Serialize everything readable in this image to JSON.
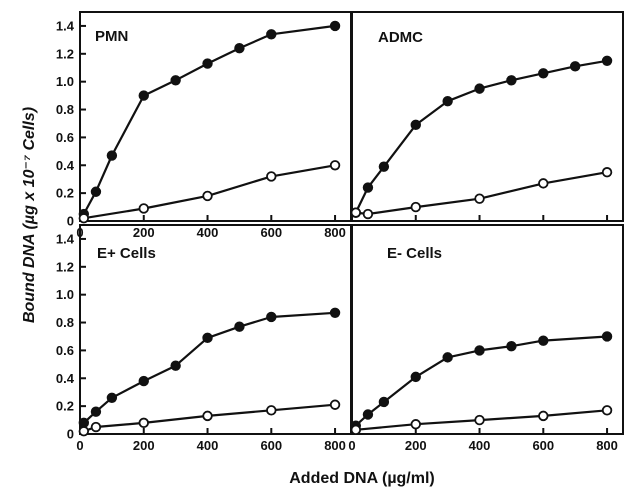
{
  "figure": {
    "ylabel": "Bound DNA (µg x 10⁻⁷ Cells)",
    "xlabel": "Added DNA (µg/ml)"
  },
  "chart_data": [
    {
      "type": "line",
      "title": "PMN",
      "xlim": [
        0,
        850
      ],
      "ylim": [
        0,
        1.5
      ],
      "xticks": [
        0,
        200,
        400,
        600,
        800
      ],
      "xtick_labels": [
        "0",
        "200",
        "400",
        "600",
        "800"
      ],
      "yticks": [
        0,
        0.2,
        0.4,
        0.6,
        0.8,
        1.0,
        1.2,
        1.4
      ],
      "ytick_labels": [
        "0",
        "0.2",
        "0.4",
        "0.6",
        "0.8",
        "1.0",
        "1.2",
        "1.4"
      ],
      "series": [
        {
          "marker": "filled-circle",
          "x": [
            12,
            50,
            100,
            200,
            300,
            400,
            500,
            600,
            800
          ],
          "y": [
            0.05,
            0.21,
            0.47,
            0.9,
            1.01,
            1.13,
            1.24,
            1.34,
            1.4
          ]
        },
        {
          "marker": "open-circle",
          "x": [
            12,
            200,
            400,
            600,
            800
          ],
          "y": [
            0.02,
            0.09,
            0.18,
            0.32,
            0.4
          ]
        }
      ]
    },
    {
      "type": "line",
      "title": "ADMC",
      "xlim": [
        0,
        850
      ],
      "ylim": [
        0,
        1.5
      ],
      "xticks": [
        0,
        200,
        400,
        600,
        800
      ],
      "xtick_labels": [
        "0",
        "200",
        "400",
        "600",
        "800"
      ],
      "yticks": [],
      "ytick_labels": [],
      "series": [
        {
          "marker": "filled-circle",
          "x": [
            12,
            50,
            100,
            200,
            300,
            400,
            500,
            600,
            700,
            800
          ],
          "y": [
            0.06,
            0.24,
            0.39,
            0.69,
            0.86,
            0.95,
            1.01,
            1.06,
            1.11,
            1.15
          ]
        },
        {
          "marker": "open-circle",
          "x": [
            12,
            50,
            200,
            400,
            600,
            800
          ],
          "y": [
            0.06,
            0.05,
            0.1,
            0.16,
            0.27,
            0.35
          ]
        }
      ]
    },
    {
      "type": "line",
      "title": "E+ Cells",
      "xlim": [
        0,
        850
      ],
      "ylim": [
        0,
        1.5
      ],
      "xticks": [
        0,
        200,
        400,
        600,
        800
      ],
      "xtick_labels": [
        "0",
        "200",
        "400",
        "600",
        "800"
      ],
      "yticks": [
        0,
        0.2,
        0.4,
        0.6,
        0.8,
        1.0,
        1.2,
        1.4
      ],
      "ytick_labels": [
        "0",
        "0.2",
        "0.4",
        "0.6",
        "0.8",
        "1.0",
        "1.2",
        "1.4"
      ],
      "series": [
        {
          "marker": "filled-circle",
          "x": [
            12,
            50,
            100,
            200,
            300,
            400,
            500,
            600,
            800
          ],
          "y": [
            0.08,
            0.16,
            0.26,
            0.38,
            0.49,
            0.69,
            0.77,
            0.84,
            0.87
          ]
        },
        {
          "marker": "open-circle",
          "x": [
            12,
            50,
            200,
            400,
            600,
            800
          ],
          "y": [
            0.02,
            0.05,
            0.08,
            0.13,
            0.17,
            0.21
          ]
        }
      ]
    },
    {
      "type": "line",
      "title": "E- Cells",
      "xlim": [
        0,
        850
      ],
      "ylim": [
        0,
        1.5
      ],
      "xticks": [
        0,
        200,
        400,
        600,
        800
      ],
      "xtick_labels": [
        "0",
        "200",
        "400",
        "600",
        "800"
      ],
      "yticks": [],
      "ytick_labels": [],
      "series": [
        {
          "marker": "filled-circle",
          "x": [
            12,
            50,
            100,
            200,
            300,
            400,
            500,
            600,
            800
          ],
          "y": [
            0.06,
            0.14,
            0.23,
            0.41,
            0.55,
            0.6,
            0.63,
            0.67,
            0.7
          ]
        },
        {
          "marker": "open-circle",
          "x": [
            12,
            200,
            400,
            600,
            800
          ],
          "y": [
            0.03,
            0.07,
            0.1,
            0.13,
            0.17
          ]
        }
      ]
    }
  ]
}
